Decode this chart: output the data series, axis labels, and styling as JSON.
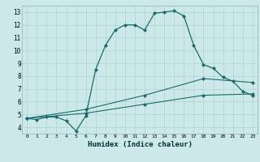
{
  "xlabel": "Humidex (Indice chaleur)",
  "ylabel": "",
  "bg_color": "#cce8e8",
  "grid_color": "#aad4d4",
  "line_color": "#1a6b6b",
  "xlim": [
    -0.5,
    23.5
  ],
  "ylim": [
    3.5,
    13.5
  ],
  "xticks": [
    0,
    1,
    2,
    3,
    4,
    5,
    6,
    7,
    8,
    9,
    10,
    11,
    12,
    13,
    14,
    15,
    16,
    17,
    18,
    19,
    20,
    21,
    22,
    23
  ],
  "yticks": [
    4,
    5,
    6,
    7,
    8,
    9,
    10,
    11,
    12,
    13
  ],
  "series": [
    {
      "x": [
        0,
        1,
        2,
        3,
        4,
        5,
        6,
        7,
        8,
        9,
        10,
        11,
        12,
        13,
        14,
        15,
        16,
        17,
        18,
        19,
        20,
        21,
        22,
        23
      ],
      "y": [
        4.7,
        4.6,
        4.8,
        4.8,
        4.5,
        3.7,
        4.9,
        8.5,
        10.4,
        11.6,
        12.0,
        12.0,
        11.6,
        12.9,
        13.0,
        13.1,
        12.7,
        10.4,
        8.9,
        8.6,
        7.9,
        7.6,
        6.8,
        6.5
      ],
      "marker": "D",
      "markersize": 2,
      "linewidth": 0.9
    },
    {
      "x": [
        0,
        6,
        12,
        18,
        23
      ],
      "y": [
        4.7,
        5.1,
        5.8,
        6.5,
        6.6
      ],
      "marker": "D",
      "markersize": 2,
      "linewidth": 0.8
    },
    {
      "x": [
        0,
        6,
        12,
        18,
        23
      ],
      "y": [
        4.7,
        5.4,
        6.5,
        7.8,
        7.5
      ],
      "marker": "D",
      "markersize": 2,
      "linewidth": 0.8
    }
  ]
}
